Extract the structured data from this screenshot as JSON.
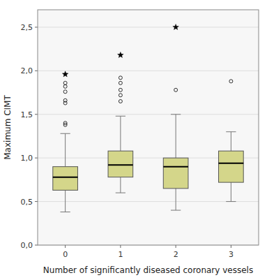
{
  "chart_data": {
    "type": "box",
    "xlabel": "Number of significantly diseased coronary vessels",
    "ylabel": "Maximum CIMT",
    "categories": [
      0,
      1,
      2,
      3
    ],
    "ylim": [
      0.0,
      2.7
    ],
    "yticks": [
      {
        "value": 0.0,
        "label": "0,0"
      },
      {
        "value": 0.5,
        "label": "0,5"
      },
      {
        "value": 1.0,
        "label": "1,0"
      },
      {
        "value": 1.5,
        "label": "1,5"
      },
      {
        "value": 2.0,
        "label": "2,0"
      },
      {
        "value": 2.5,
        "label": "2,5"
      }
    ],
    "grid": true,
    "color": "#d4d68a",
    "boxes": [
      {
        "q1": 0.63,
        "median": 0.78,
        "q3": 0.9,
        "whislo": 0.38,
        "whishi": 1.28,
        "fliers_circle": [
          1.38,
          1.4,
          1.63,
          1.66,
          1.76,
          1.82,
          1.86
        ],
        "fliers_star": [
          1.96
        ]
      },
      {
        "q1": 0.78,
        "median": 0.92,
        "q3": 1.08,
        "whislo": 0.6,
        "whishi": 1.48,
        "fliers_circle": [
          1.65,
          1.72,
          1.78,
          1.86,
          1.92
        ],
        "fliers_star": [
          2.18
        ]
      },
      {
        "q1": 0.65,
        "median": 0.9,
        "q3": 1.0,
        "whislo": 0.4,
        "whishi": 1.5,
        "fliers_circle": [
          1.78
        ],
        "fliers_star": [
          2.5
        ]
      },
      {
        "q1": 0.72,
        "median": 0.94,
        "q3": 1.08,
        "whislo": 0.5,
        "whishi": 1.3,
        "fliers_circle": [
          1.88
        ],
        "fliers_star": []
      }
    ]
  }
}
